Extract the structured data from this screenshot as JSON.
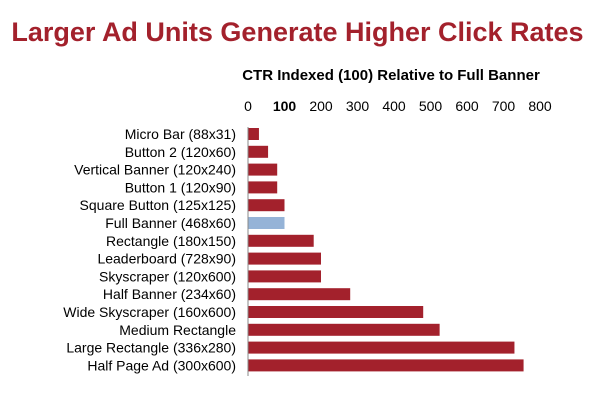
{
  "chart_data": {
    "type": "bar",
    "orientation": "horizontal",
    "title": "Larger Ad Units Generate Higher Click Rates",
    "xlabel": "CTR Indexed (100) Relative to Full Banner",
    "ylabel": "",
    "xlim": [
      0,
      800
    ],
    "xticks": [
      0,
      100,
      200,
      300,
      400,
      500,
      600,
      700,
      800
    ],
    "xticks_bold": [
      100
    ],
    "axis_position": "top",
    "grid": false,
    "legend": false,
    "categories": [
      "Micro Bar (88x31)",
      "Button 2 (120x60)",
      "Vertical Banner (120x240)",
      "Button 1 (120x90)",
      "Square Button (125x125)",
      "Full Banner (468x60)",
      "Rectangle (180x150)",
      "Leaderboard (728x90)",
      "Skyscraper (120x600)",
      "Half Banner (234x60)",
      "Wide Skyscraper (160x600)",
      "Medium Rectangle",
      "Large Rectangle (336x280)",
      "Half Page Ad (300x600)"
    ],
    "values": [
      30,
      55,
      80,
      80,
      100,
      100,
      180,
      200,
      200,
      280,
      480,
      525,
      730,
      755
    ],
    "bar_color": "#a3212c",
    "highlight_color": "#95b3d7",
    "highlight_category": "Full Banner (468x60)"
  }
}
